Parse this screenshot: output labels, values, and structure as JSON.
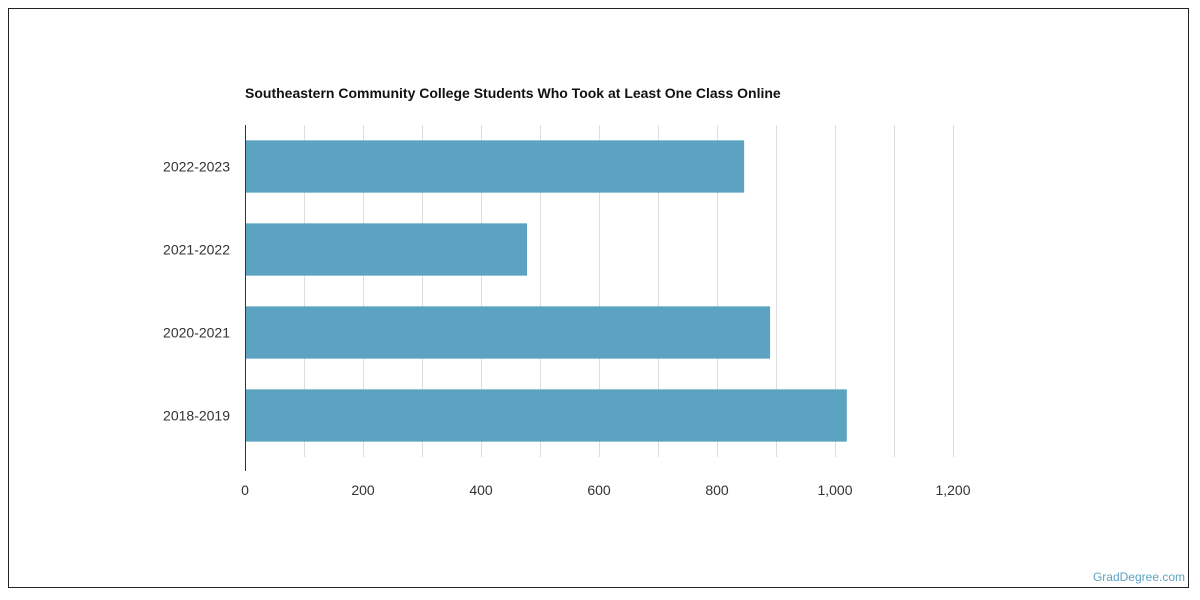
{
  "chart_data": {
    "type": "bar",
    "orientation": "horizontal",
    "title": "Southeastern Community College Students Who Took at Least One Class Online",
    "categories": [
      "2022-2023",
      "2021-2022",
      "2020-2021",
      "2018-2019"
    ],
    "values": [
      846,
      478,
      890,
      1020
    ],
    "xlim": [
      0,
      1200
    ],
    "x_ticks": [
      0,
      200,
      400,
      600,
      800,
      1000,
      1200
    ],
    "x_tick_labels": [
      "0",
      "200",
      "400",
      "600",
      "800",
      "1,000",
      "1,200"
    ],
    "xlabel": "",
    "ylabel": "",
    "grid": true,
    "bar_color": "#5ba3c0"
  },
  "watermark": "GradDegree.com"
}
